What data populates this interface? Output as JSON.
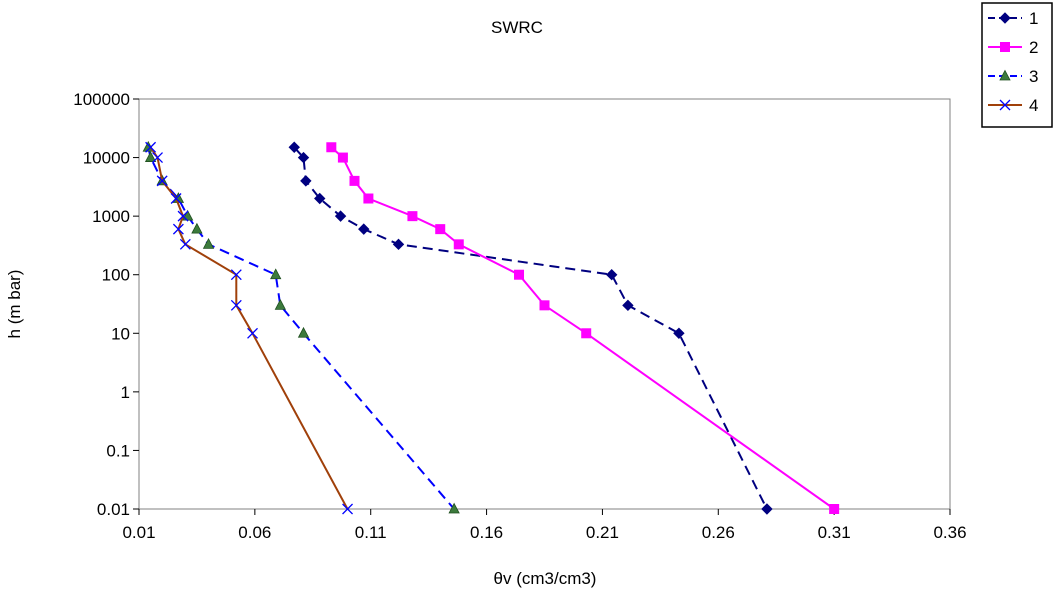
{
  "chart_data": {
    "type": "line",
    "title": "SWRC",
    "xlabel": "θv (cm3/cm3)",
    "ylabel": "h (m bar)",
    "xlim": [
      0.01,
      0.36
    ],
    "ylim": [
      0.01,
      100000
    ],
    "y_scale": "log",
    "x_ticks": [
      "0.01",
      "0.06",
      "0.11",
      "0.16",
      "0.21",
      "0.26",
      "0.31",
      "0.36"
    ],
    "y_ticks": [
      "0.01",
      "0.1",
      "1",
      "10",
      "100",
      "1000",
      "10000",
      "100000"
    ],
    "grid": false,
    "legend_position": "top-right",
    "series": [
      {
        "name": "1",
        "color": "#000080",
        "dash": "dashed",
        "marker": "diamond",
        "points": [
          [
            0.077,
            15000
          ],
          [
            0.081,
            10000
          ],
          [
            0.082,
            4000
          ],
          [
            0.088,
            2000
          ],
          [
            0.097,
            1000
          ],
          [
            0.107,
            600
          ],
          [
            0.122,
            330
          ],
          [
            0.214,
            100
          ],
          [
            0.221,
            30
          ],
          [
            0.243,
            10
          ],
          [
            0.281,
            0.01
          ]
        ]
      },
      {
        "name": "2",
        "color": "#ff00ff",
        "dash": "solid",
        "marker": "square",
        "points": [
          [
            0.093,
            15000
          ],
          [
            0.098,
            10000
          ],
          [
            0.103,
            4000
          ],
          [
            0.109,
            2000
          ],
          [
            0.128,
            1000
          ],
          [
            0.14,
            600
          ],
          [
            0.148,
            330
          ],
          [
            0.174,
            100
          ],
          [
            0.185,
            30
          ],
          [
            0.203,
            10
          ],
          [
            0.31,
            0.01
          ]
        ]
      },
      {
        "name": "3",
        "color": "#0000ff",
        "dash": "dashed",
        "marker": "triangle",
        "points": [
          [
            0.014,
            15000
          ],
          [
            0.015,
            10000
          ],
          [
            0.02,
            4000
          ],
          [
            0.027,
            2000
          ],
          [
            0.031,
            1000
          ],
          [
            0.035,
            600
          ],
          [
            0.04,
            330
          ],
          [
            0.069,
            100
          ],
          [
            0.071,
            30
          ],
          [
            0.081,
            10
          ],
          [
            0.146,
            0.01
          ]
        ]
      },
      {
        "name": "4",
        "color": "#a0400a",
        "dash": "solid",
        "marker": "x",
        "points": [
          [
            0.015,
            15000
          ],
          [
            0.018,
            10000
          ],
          [
            0.02,
            4000
          ],
          [
            0.026,
            2000
          ],
          [
            0.029,
            1000
          ],
          [
            0.027,
            600
          ],
          [
            0.03,
            330
          ],
          [
            0.052,
            100
          ],
          [
            0.052,
            30
          ],
          [
            0.059,
            10
          ],
          [
            0.1,
            0.01
          ]
        ]
      }
    ]
  }
}
